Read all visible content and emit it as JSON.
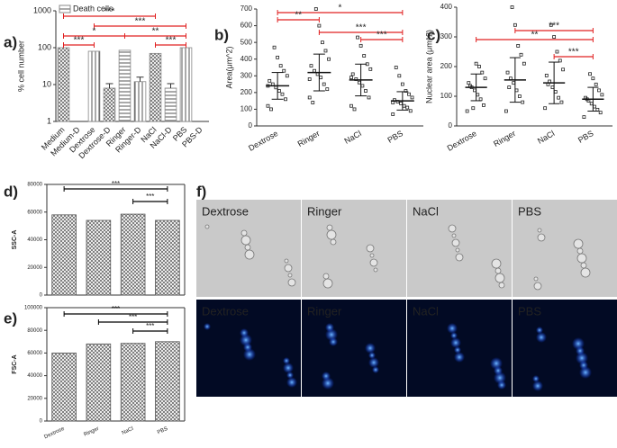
{
  "chart_data": [
    {
      "type": "bar",
      "panel_label": "a)",
      "ylabel": "% cell number",
      "log_scale": true,
      "categories": [
        "Medium",
        "Medium-D",
        "Dextrose",
        "Dextrose-D",
        "Ringer",
        "Ringer-D",
        "NaCl",
        "NaCl-D",
        "PBS",
        "PBS-D"
      ],
      "series": [
        {
          "name": "Death cells",
          "color": "#888888",
          "values": [
            100,
            null,
            80,
            8,
            85,
            12,
            70,
            8,
            100,
            null
          ]
        }
      ],
      "ylim": [
        1,
        1000
      ],
      "yticks": [
        1,
        10,
        100,
        1000
      ],
      "legend": "upper left",
      "annotation_color": "#e02020",
      "annotations": [
        "***",
        "***",
        "*",
        "**",
        "***",
        "***"
      ]
    },
    {
      "type": "scatter",
      "panel_label": "b)",
      "ylabel": "Area(μm^2)",
      "categories": [
        "Dextrose",
        "Ringer",
        "NaCl",
        "PBS"
      ],
      "values": [
        [
          120,
          160,
          190,
          210,
          230,
          250,
          270,
          300,
          330,
          360,
          410,
          470,
          100,
          240
        ],
        [
          170,
          220,
          250,
          290,
          310,
          330,
          360,
          400,
          450,
          500,
          600,
          700,
          140,
          280
        ],
        [
          120,
          170,
          210,
          240,
          260,
          280,
          310,
          340,
          370,
          420,
          480,
          530,
          100,
          290
        ],
        [
          70,
          90,
          110,
          120,
          135,
          145,
          155,
          170,
          190,
          210,
          250,
          300,
          350,
          140
        ]
      ],
      "means": [
        240,
        320,
        275,
        150
      ],
      "sds": [
        80,
        110,
        95,
        55
      ],
      "ylim": [
        0,
        700
      ],
      "yticks": [
        0,
        100,
        200,
        300,
        400,
        500,
        600,
        700
      ],
      "annotation_color": "#e02020",
      "annotations": [
        "*",
        "**",
        "***",
        "***"
      ]
    },
    {
      "type": "scatter",
      "panel_label": "c)",
      "ylabel": "Nuclear area (μm^2)",
      "categories": [
        "Dextrose",
        "Ringer",
        "NaCl",
        "PBS"
      ],
      "values": [
        [
          50,
          70,
          90,
          105,
          120,
          130,
          145,
          160,
          180,
          200,
          210,
          60,
          135
        ],
        [
          50,
          80,
          100,
          120,
          145,
          160,
          180,
          210,
          240,
          270,
          340,
          400,
          130
        ],
        [
          60,
          80,
          95,
          115,
          130,
          150,
          170,
          190,
          220,
          250,
          300,
          340,
          140
        ],
        [
          30,
          45,
          55,
          65,
          75,
          85,
          95,
          105,
          120,
          140,
          160,
          175,
          90
        ]
      ],
      "means": [
        130,
        155,
        145,
        90
      ],
      "sds": [
        45,
        75,
        70,
        40
      ],
      "ylim": [
        0,
        400
      ],
      "yticks": [
        0,
        100,
        200,
        300,
        400
      ],
      "annotation_color": "#e02020",
      "annotations": [
        "***",
        "**",
        "***"
      ]
    },
    {
      "type": "bar",
      "panel_label": "d)",
      "ylabel": "SSC-A",
      "categories": [
        null,
        null,
        null,
        null
      ],
      "values": [
        58000,
        54000,
        58500,
        54000
      ],
      "color": "#555555",
      "ylim": [
        0,
        80000
      ],
      "yticks": [
        0,
        20000,
        40000,
        60000,
        80000
      ],
      "annotation_color": "#000000",
      "annotations": [
        "***",
        "***"
      ]
    },
    {
      "type": "bar",
      "panel_label": "e)",
      "ylabel": "FSC-A",
      "categories": [
        "Dextrose",
        "Ringer",
        "NaCl",
        "PBS"
      ],
      "values": [
        60000,
        68000,
        68500,
        70000
      ],
      "color": "#555555",
      "ylim": [
        0,
        100000
      ],
      "yticks": [
        0,
        20000,
        40000,
        60000,
        80000,
        100000
      ],
      "annotation_color": "#000000",
      "annotations": [
        "***",
        "***",
        "***"
      ]
    }
  ],
  "panel_f": {
    "label": "f)",
    "bright_field": [
      "Dextrose",
      "Ringer",
      "NaCl",
      "PBS"
    ],
    "fluorescence": [
      "Dextrose",
      "Ringer",
      "NaCl",
      "PBS"
    ]
  }
}
